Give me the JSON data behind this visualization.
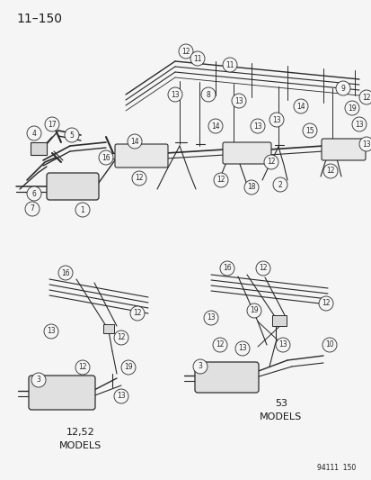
{
  "page_number": "11–150",
  "doc_number": "94111  150",
  "bg": "#f5f5f5",
  "lc": "#2a2a2a",
  "tc": "#1a1a1a",
  "fig_width": 4.14,
  "fig_height": 5.33,
  "dpi": 100,
  "title_fs": 10,
  "callout_fs": 5.5,
  "callout_r": 8,
  "models_fs": 8
}
